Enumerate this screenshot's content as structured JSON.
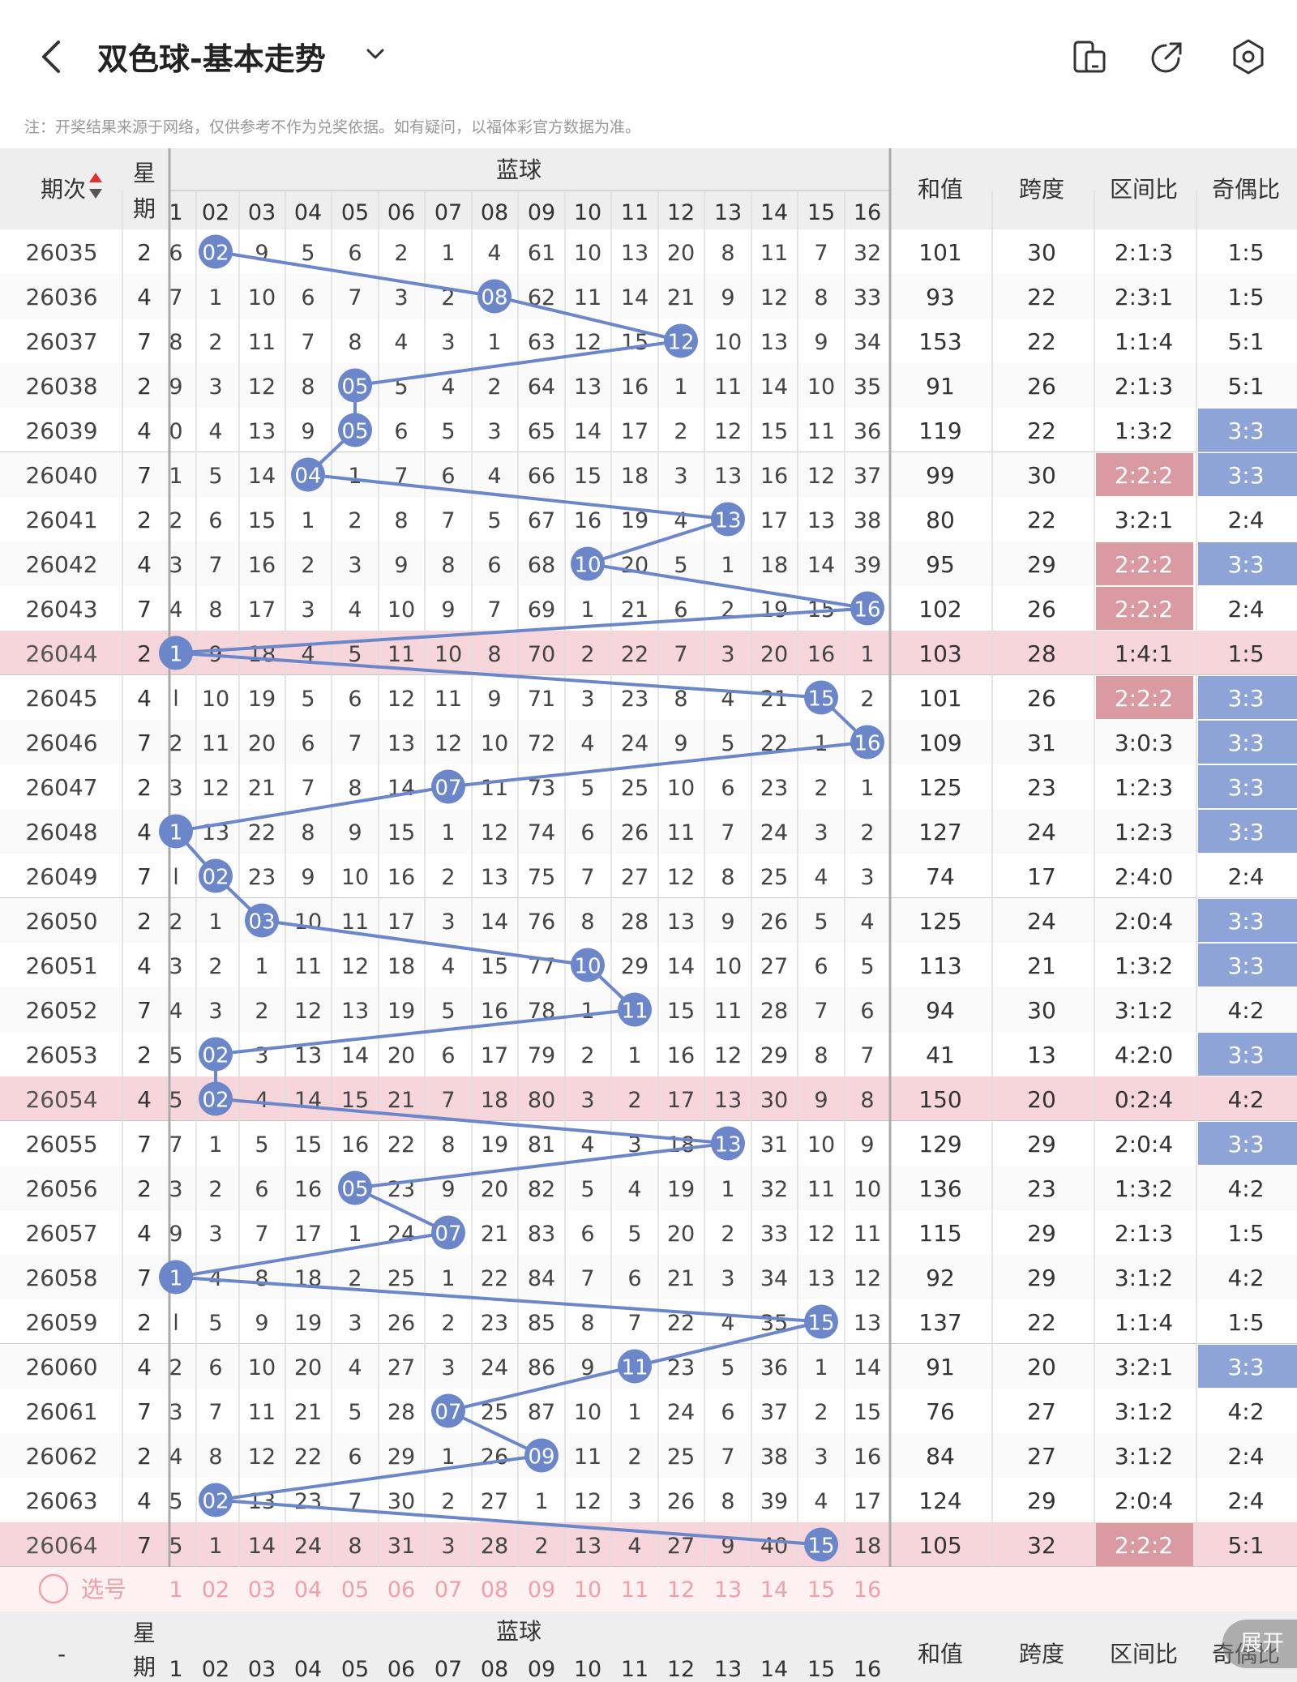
{
  "header": {
    "title": "双色球-基本走势",
    "back_icon": "chevron-left-icon",
    "dropdown_icon": "chevron-down-icon",
    "icons": [
      "phone-tablet-icon",
      "share-icon",
      "settings-hexagon-icon"
    ]
  },
  "notice": "注：开奖结果来源于网络，仅供参考不作为兑奖依据。如有疑问，以福体彩官方数据为准。",
  "table": {
    "col_period": "期次",
    "col_week": "星期",
    "group_blue": "蓝球",
    "col_sum": "和值",
    "col_span": "跨度",
    "col_zone": "区间比",
    "col_parity": "奇偶比",
    "blue_numbers": [
      "1",
      "02",
      "03",
      "04",
      "05",
      "06",
      "07",
      "08",
      "09",
      "10",
      "11",
      "12",
      "13",
      "14",
      "15",
      "16"
    ],
    "rows": [
      {
        "period": "26035",
        "week": "2",
        "hit": 2,
        "cells": [
          "6",
          "02",
          "9",
          "5",
          "6",
          "2",
          "1",
          "4",
          "61",
          "10",
          "13",
          "20",
          "8",
          "11",
          "7",
          "32"
        ],
        "sum": "101",
        "span": "30",
        "zone": "2:1:3",
        "parity": "1:5"
      },
      {
        "period": "26036",
        "week": "4",
        "hit": 8,
        "cells": [
          "7",
          "1",
          "10",
          "6",
          "7",
          "3",
          "2",
          "08",
          "62",
          "11",
          "14",
          "21",
          "9",
          "12",
          "8",
          "33"
        ],
        "sum": "93",
        "span": "22",
        "zone": "2:3:1",
        "parity": "1:5"
      },
      {
        "period": "26037",
        "week": "7",
        "hit": 12,
        "cells": [
          "8",
          "2",
          "11",
          "7",
          "8",
          "4",
          "3",
          "1",
          "63",
          "12",
          "15",
          "12",
          "10",
          "13",
          "9",
          "34"
        ],
        "sum": "153",
        "span": "22",
        "zone": "1:1:4",
        "parity": "5:1"
      },
      {
        "period": "26038",
        "week": "2",
        "hit": 5,
        "cells": [
          "9",
          "3",
          "12",
          "8",
          "05",
          "5",
          "4",
          "2",
          "64",
          "13",
          "16",
          "1",
          "11",
          "14",
          "10",
          "35"
        ],
        "sum": "91",
        "span": "26",
        "zone": "2:1:3",
        "parity": "5:1"
      },
      {
        "period": "26039",
        "week": "4",
        "hit": 5,
        "cells": [
          "0",
          "4",
          "13",
          "9",
          "05",
          "6",
          "5",
          "3",
          "65",
          "14",
          "17",
          "2",
          "12",
          "15",
          "11",
          "36"
        ],
        "sum": "119",
        "span": "22",
        "zone": "1:3:2",
        "parity": "3:3"
      },
      {
        "period": "26040",
        "week": "7",
        "hit": 4,
        "cells": [
          "1",
          "5",
          "14",
          "04",
          "1",
          "7",
          "6",
          "4",
          "66",
          "15",
          "18",
          "3",
          "13",
          "16",
          "12",
          "37"
        ],
        "sum": "99",
        "span": "30",
        "zone": "2:2:2",
        "parity": "3:3"
      },
      {
        "period": "26041",
        "week": "2",
        "hit": 13,
        "cells": [
          "2",
          "6",
          "15",
          "1",
          "2",
          "8",
          "7",
          "5",
          "67",
          "16",
          "19",
          "4",
          "13",
          "17",
          "13",
          "38"
        ],
        "sum": "80",
        "span": "22",
        "zone": "3:2:1",
        "parity": "2:4"
      },
      {
        "period": "26042",
        "week": "4",
        "hit": 10,
        "cells": [
          "3",
          "7",
          "16",
          "2",
          "3",
          "9",
          "8",
          "6",
          "68",
          "10",
          "20",
          "5",
          "1",
          "18",
          "14",
          "39"
        ],
        "sum": "95",
        "span": "29",
        "zone": "2:2:2",
        "parity": "3:3"
      },
      {
        "period": "26043",
        "week": "7",
        "hit": 16,
        "cells": [
          "4",
          "8",
          "17",
          "3",
          "4",
          "10",
          "9",
          "7",
          "69",
          "1",
          "21",
          "6",
          "2",
          "19",
          "15",
          "16"
        ],
        "sum": "102",
        "span": "26",
        "zone": "2:2:2",
        "parity": "2:4"
      },
      {
        "period": "26044",
        "week": "2",
        "hit": 1,
        "cells": [
          "1",
          "9",
          "18",
          "4",
          "5",
          "11",
          "10",
          "8",
          "70",
          "2",
          "22",
          "7",
          "3",
          "20",
          "16",
          "1"
        ],
        "sum": "103",
        "span": "28",
        "zone": "1:4:1",
        "parity": "1:5"
      },
      {
        "period": "26045",
        "week": "4",
        "hit": 15,
        "cells": [
          "l",
          "10",
          "19",
          "5",
          "6",
          "12",
          "11",
          "9",
          "71",
          "3",
          "23",
          "8",
          "4",
          "21",
          "15",
          "2"
        ],
        "sum": "101",
        "span": "26",
        "zone": "2:2:2",
        "parity": "3:3"
      },
      {
        "period": "26046",
        "week": "7",
        "hit": 16,
        "cells": [
          "2",
          "11",
          "20",
          "6",
          "7",
          "13",
          "12",
          "10",
          "72",
          "4",
          "24",
          "9",
          "5",
          "22",
          "1",
          "16"
        ],
        "sum": "109",
        "span": "31",
        "zone": "3:0:3",
        "parity": "3:3"
      },
      {
        "period": "26047",
        "week": "2",
        "hit": 7,
        "cells": [
          "3",
          "12",
          "21",
          "7",
          "8",
          "14",
          "07",
          "11",
          "73",
          "5",
          "25",
          "10",
          "6",
          "23",
          "2",
          "1"
        ],
        "sum": "125",
        "span": "23",
        "zone": "1:2:3",
        "parity": "3:3"
      },
      {
        "period": "26048",
        "week": "4",
        "hit": 1,
        "cells": [
          "1",
          "13",
          "22",
          "8",
          "9",
          "15",
          "1",
          "12",
          "74",
          "6",
          "26",
          "11",
          "7",
          "24",
          "3",
          "2"
        ],
        "sum": "127",
        "span": "24",
        "zone": "1:2:3",
        "parity": "3:3"
      },
      {
        "period": "26049",
        "week": "7",
        "hit": 2,
        "cells": [
          "l",
          "02",
          "23",
          "9",
          "10",
          "16",
          "2",
          "13",
          "75",
          "7",
          "27",
          "12",
          "8",
          "25",
          "4",
          "3"
        ],
        "sum": "74",
        "span": "17",
        "zone": "2:4:0",
        "parity": "2:4"
      },
      {
        "period": "26050",
        "week": "2",
        "hit": 3,
        "cells": [
          "2",
          "1",
          "03",
          "10",
          "11",
          "17",
          "3",
          "14",
          "76",
          "8",
          "28",
          "13",
          "9",
          "26",
          "5",
          "4"
        ],
        "sum": "125",
        "span": "24",
        "zone": "2:0:4",
        "parity": "3:3"
      },
      {
        "period": "26051",
        "week": "4",
        "hit": 10,
        "cells": [
          "3",
          "2",
          "1",
          "11",
          "12",
          "18",
          "4",
          "15",
          "77",
          "10",
          "29",
          "14",
          "10",
          "27",
          "6",
          "5"
        ],
        "sum": "113",
        "span": "21",
        "zone": "1:3:2",
        "parity": "3:3"
      },
      {
        "period": "26052",
        "week": "7",
        "hit": 11,
        "cells": [
          "4",
          "3",
          "2",
          "12",
          "13",
          "19",
          "5",
          "16",
          "78",
          "1",
          "11",
          "15",
          "11",
          "28",
          "7",
          "6"
        ],
        "sum": "94",
        "span": "30",
        "zone": "3:1:2",
        "parity": "4:2"
      },
      {
        "period": "26053",
        "week": "2",
        "hit": 2,
        "cells": [
          "5",
          "02",
          "3",
          "13",
          "14",
          "20",
          "6",
          "17",
          "79",
          "2",
          "1",
          "16",
          "12",
          "29",
          "8",
          "7"
        ],
        "sum": "41",
        "span": "13",
        "zone": "4:2:0",
        "parity": "3:3"
      },
      {
        "period": "26054",
        "week": "4",
        "hit": 2,
        "cells": [
          "5",
          "02",
          "4",
          "14",
          "15",
          "21",
          "7",
          "18",
          "80",
          "3",
          "2",
          "17",
          "13",
          "30",
          "9",
          "8"
        ],
        "sum": "150",
        "span": "20",
        "zone": "0:2:4",
        "parity": "4:2"
      },
      {
        "period": "26055",
        "week": "7",
        "hit": 13,
        "cells": [
          "7",
          "1",
          "5",
          "15",
          "16",
          "22",
          "8",
          "19",
          "81",
          "4",
          "3",
          "18",
          "13",
          "31",
          "10",
          "9"
        ],
        "sum": "129",
        "span": "29",
        "zone": "2:0:4",
        "parity": "3:3"
      },
      {
        "period": "26056",
        "week": "2",
        "hit": 5,
        "cells": [
          "3",
          "2",
          "6",
          "16",
          "05",
          "23",
          "9",
          "20",
          "82",
          "5",
          "4",
          "19",
          "1",
          "32",
          "11",
          "10"
        ],
        "sum": "136",
        "span": "23",
        "zone": "1:3:2",
        "parity": "4:2"
      },
      {
        "period": "26057",
        "week": "4",
        "hit": 7,
        "cells": [
          "9",
          "3",
          "7",
          "17",
          "1",
          "24",
          "07",
          "21",
          "83",
          "6",
          "5",
          "20",
          "2",
          "33",
          "12",
          "11"
        ],
        "sum": "115",
        "span": "29",
        "zone": "2:1:3",
        "parity": "1:5"
      },
      {
        "period": "26058",
        "week": "7",
        "hit": 1,
        "cells": [
          "1",
          "4",
          "8",
          "18",
          "2",
          "25",
          "1",
          "22",
          "84",
          "7",
          "6",
          "21",
          "3",
          "34",
          "13",
          "12"
        ],
        "sum": "92",
        "span": "29",
        "zone": "3:1:2",
        "parity": "4:2"
      },
      {
        "period": "26059",
        "week": "2",
        "hit": 15,
        "cells": [
          "l",
          "5",
          "9",
          "19",
          "3",
          "26",
          "2",
          "23",
          "85",
          "8",
          "7",
          "22",
          "4",
          "35",
          "15",
          "13"
        ],
        "sum": "137",
        "span": "22",
        "zone": "1:1:4",
        "parity": "1:5"
      },
      {
        "period": "26060",
        "week": "4",
        "hit": 11,
        "cells": [
          "2",
          "6",
          "10",
          "20",
          "4",
          "27",
          "3",
          "24",
          "86",
          "9",
          "11",
          "23",
          "5",
          "36",
          "1",
          "14"
        ],
        "sum": "91",
        "span": "20",
        "zone": "3:2:1",
        "parity": "3:3"
      },
      {
        "period": "26061",
        "week": "7",
        "hit": 7,
        "cells": [
          "3",
          "7",
          "11",
          "21",
          "5",
          "28",
          "07",
          "25",
          "87",
          "10",
          "1",
          "24",
          "6",
          "37",
          "2",
          "15"
        ],
        "sum": "76",
        "span": "27",
        "zone": "3:1:2",
        "parity": "4:2"
      },
      {
        "period": "26062",
        "week": "2",
        "hit": 9,
        "cells": [
          "4",
          "8",
          "12",
          "22",
          "6",
          "29",
          "1",
          "26",
          "09",
          "11",
          "2",
          "25",
          "7",
          "38",
          "3",
          "16"
        ],
        "sum": "84",
        "span": "27",
        "zone": "3:1:2",
        "parity": "2:4"
      },
      {
        "period": "26063",
        "week": "4",
        "hit": 2,
        "cells": [
          "5",
          "02",
          "13",
          "23",
          "7",
          "30",
          "2",
          "27",
          "1",
          "12",
          "3",
          "26",
          "8",
          "39",
          "4",
          "17"
        ],
        "sum": "124",
        "span": "29",
        "zone": "2:0:4",
        "parity": "2:4"
      },
      {
        "period": "26064",
        "week": "7",
        "hit": 15,
        "cells": [
          "5",
          "1",
          "14",
          "24",
          "8",
          "31",
          "3",
          "28",
          "2",
          "13",
          "4",
          "27",
          "9",
          "40",
          "15",
          "18"
        ],
        "sum": "105",
        "span": "32",
        "zone": "2:2:2",
        "parity": "5:1"
      }
    ],
    "highlight_rows": [
      "26044",
      "26054",
      "26064"
    ],
    "select_label": "选号",
    "footer_period": "-",
    "fab_label": "展开"
  },
  "colors": {
    "ball": "#6b86c9",
    "line": "#6b86c9",
    "parity_highlight": "#8fa4d6",
    "zone_highlight": "#d99aa2",
    "row_highlight": "#f6d6da",
    "header_bg": "#eeeeee",
    "select_text": "#f0a0a8"
  }
}
